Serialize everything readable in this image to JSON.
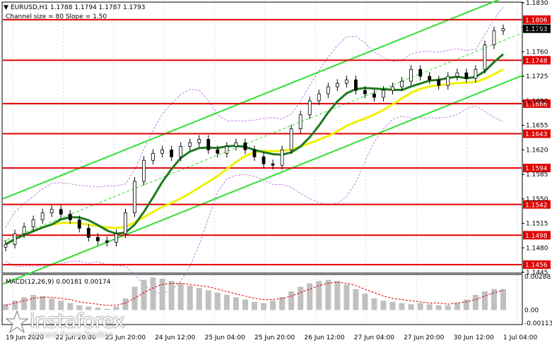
{
  "colors": {
    "level_line": "#e00000",
    "channel": "#33dd33",
    "ma_fast": "#1e7a1e",
    "ma_slow": "#f0f000",
    "bollinger": "#c080e0",
    "candle": "#000000",
    "macd_hist": "#c0c0c0",
    "macd_signal": "#e00000"
  },
  "header": {
    "symbol": "EURUSD,H1  1.1788 1.1794 1.1787 1.1793",
    "channel_info": "Channel size = 80 Slope = 1.50"
  },
  "macd_title": "MACD(12,26,9) 0.00181 0.00174",
  "logo": {
    "name": "instaforex",
    "tagline": "Instant Forex Trading",
    "icon": "star-logo-icon"
  },
  "chart_data": [
    {
      "type": "candlestick",
      "symbol": "EURUSD",
      "timeframe": "H1",
      "ylim": [
        1.1445,
        1.183
      ],
      "y_ticks": [
        "1.1830",
        "1.1795",
        "1.1760",
        "1.1725",
        "1.1690",
        "1.1655",
        "1.1620",
        "1.1585",
        "1.1550",
        "1.1515",
        "1.1480",
        "1.1445"
      ],
      "x_ticks": [
        "19 Jun 2020",
        "22 Jun 20:00",
        "23 Jun 20:00",
        "24 Jun 12:00",
        "25 Jun 04:00",
        "25 Jun 20:00",
        "26 Jun 12:00",
        "27 Jun 04:00",
        "27 Jun 20:00",
        "30 Jun 12:00",
        "1 Jul 04:00"
      ],
      "levels": [
        1.1806,
        1.1748,
        1.1686,
        1.1643,
        1.1594,
        1.1542,
        1.1498,
        1.1456
      ],
      "current_price": 1.1793,
      "ohlc": {
        "open": 1.1788,
        "high": 1.1794,
        "low": 1.1787,
        "close": 1.1793
      },
      "series": [
        {
          "values": [
            1.1485,
            1.15,
            1.151,
            1.152,
            1.153,
            1.1535,
            1.1528,
            1.152,
            1.1508,
            1.1495,
            1.149,
            1.1488,
            1.15,
            1.153,
            1.1575,
            1.1605,
            1.1615,
            1.162,
            1.161,
            1.1625,
            1.163,
            1.1635,
            1.162,
            1.1615,
            1.1625,
            1.163,
            1.162,
            1.161,
            1.16,
            1.1598,
            1.162,
            1.165,
            1.167,
            1.169,
            1.17,
            1.171,
            1.1715,
            1.172,
            1.1705,
            1.17,
            1.1695,
            1.1705,
            1.171,
            1.1718,
            1.1735,
            1.1725,
            1.172,
            1.1712,
            1.1725,
            1.173,
            1.1722,
            1.1735,
            1.177,
            1.179,
            1.1793
          ]
        }
      ]
    },
    {
      "type": "bar",
      "title": "MACD(12,26,9) 0.00181 0.00174",
      "ylim": [
        -0.00113,
        0.00288
      ],
      "y_ticks": [
        "0.00288",
        "0.00",
        "-0.00113"
      ],
      "series": [
        {
          "name": "MACD",
          "values": [
            0.0005,
            0.0008,
            0.0011,
            0.0013,
            0.0012,
            0.001,
            0.0008,
            0.0006,
            0.0004,
            0.0003,
            0.0002,
            0.0001,
            0.0003,
            0.001,
            0.002,
            0.0026,
            0.0028,
            0.0027,
            0.0025,
            0.0023,
            0.0021,
            0.0019,
            0.0017,
            0.0015,
            0.0013,
            0.0011,
            0.0009,
            0.0007,
            0.0006,
            0.0008,
            0.0011,
            0.0016,
            0.002,
            0.0023,
            0.0025,
            0.0026,
            0.0025,
            0.0022,
            0.0018,
            0.0014,
            0.001,
            0.0008,
            0.0007,
            0.0006,
            0.0005,
            0.0006,
            0.0005,
            0.0004,
            0.0004,
            0.0006,
            0.0009,
            0.0013,
            0.0016,
            0.0018,
            0.0018
          ]
        },
        {
          "name": "Signal",
          "values": [
            0.0004,
            0.0006,
            0.0008,
            0.001,
            0.0011,
            0.0011,
            0.001,
            0.0009,
            0.0007,
            0.0006,
            0.0005,
            0.0004,
            0.0004,
            0.0006,
            0.001,
            0.0015,
            0.0019,
            0.0022,
            0.0023,
            0.0023,
            0.0022,
            0.0021,
            0.002,
            0.0018,
            0.0016,
            0.0014,
            0.0012,
            0.001,
            0.0009,
            0.0009,
            0.001,
            0.0012,
            0.0015,
            0.0018,
            0.0021,
            0.0023,
            0.0024,
            0.0023,
            0.0021,
            0.0018,
            0.0015,
            0.0012,
            0.001,
            0.0009,
            0.0008,
            0.0007,
            0.0006,
            0.0006,
            0.0005,
            0.0006,
            0.0007,
            0.0009,
            0.0012,
            0.0015,
            0.0017
          ]
        }
      ]
    }
  ]
}
